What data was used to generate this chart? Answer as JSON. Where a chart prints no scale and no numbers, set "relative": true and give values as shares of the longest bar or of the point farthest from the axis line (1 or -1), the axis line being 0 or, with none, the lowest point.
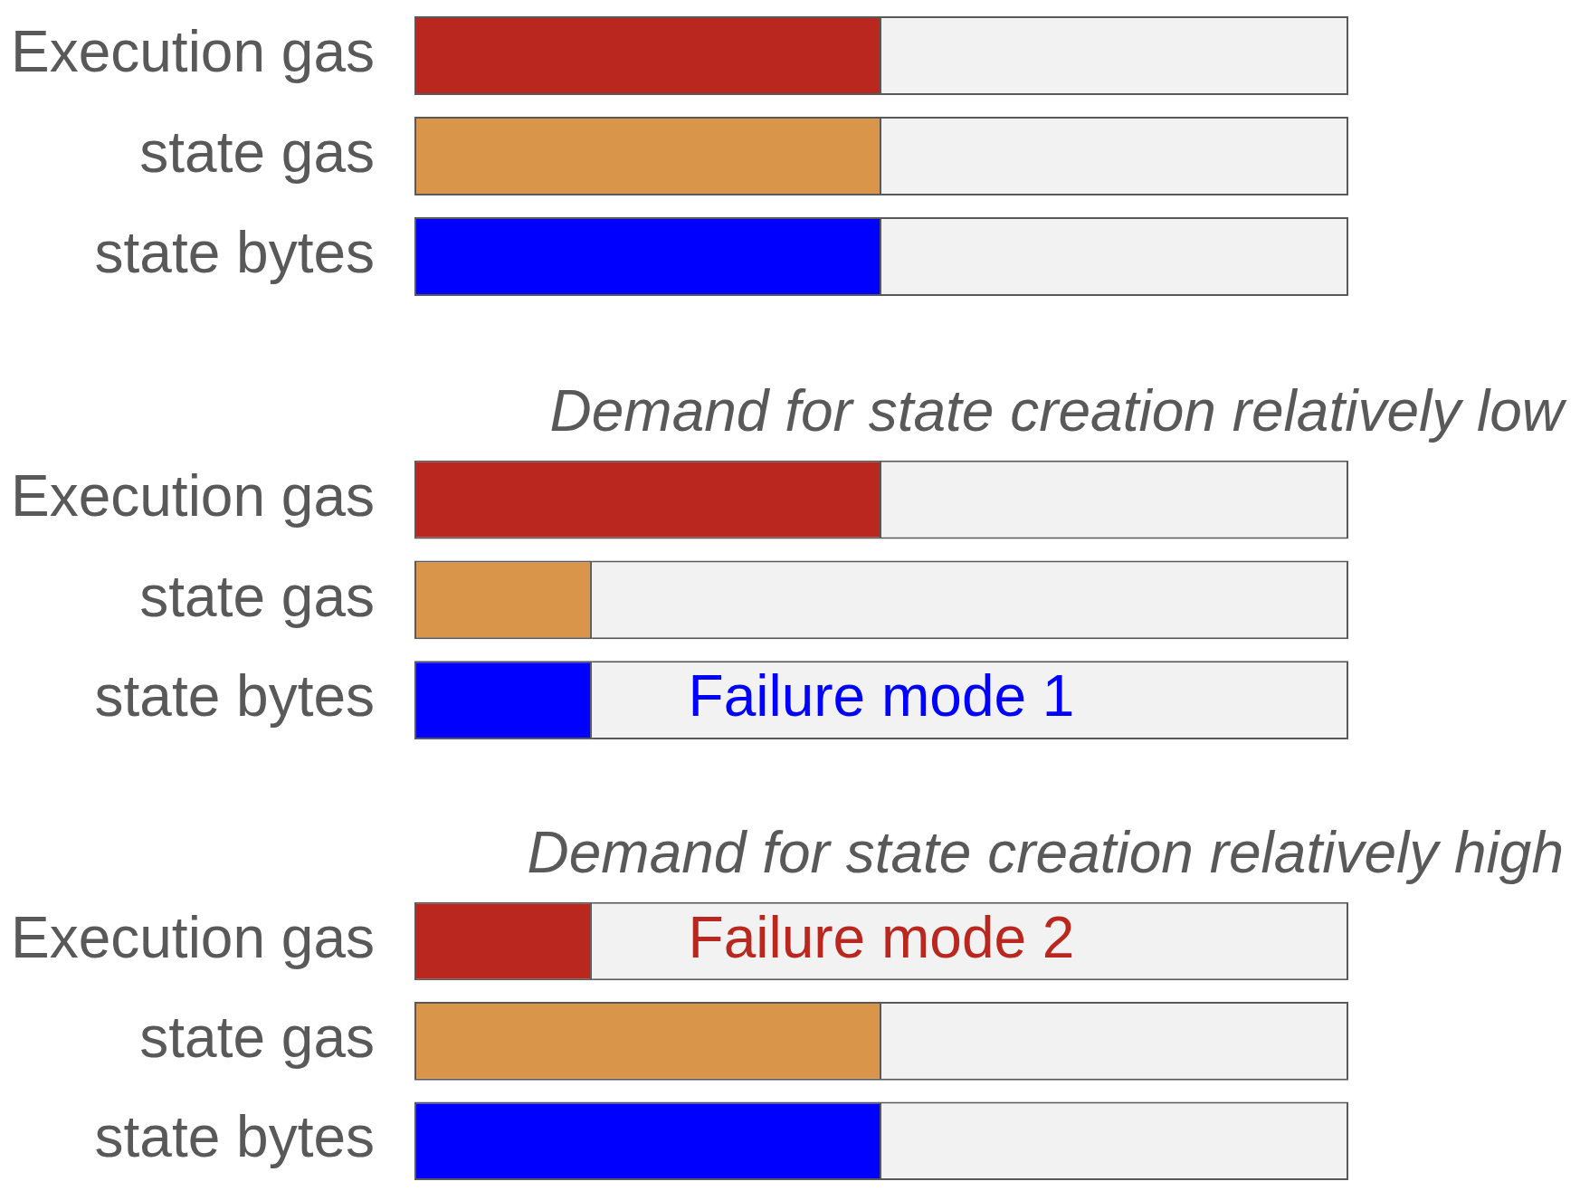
{
  "chart_data": [
    {
      "type": "bar",
      "orientation": "horizontal",
      "stacked": true,
      "relative": true,
      "categories": [
        "Execution gas",
        "state gas",
        "state bytes"
      ],
      "series": [
        {
          "colors": [
            "#b9271e",
            "#d9964b",
            "#0000ff"
          ],
          "values": [
            0.5,
            0.5,
            0.5
          ]
        },
        {
          "color": "#f2f2f2",
          "values": [
            0.5,
            0.5,
            0.5
          ]
        }
      ]
    },
    {
      "type": "bar",
      "orientation": "horizontal",
      "stacked": true,
      "relative": true,
      "title": "Demand for state creation relatively low",
      "categories": [
        "Execution gas",
        "state gas",
        "state bytes"
      ],
      "series": [
        {
          "colors": [
            "#b9271e",
            "#d9964b",
            "#0000ff"
          ],
          "values": [
            0.5,
            0.19,
            0.19
          ]
        },
        {
          "color": "#f2f2f2",
          "values": [
            0.5,
            0.81,
            0.81
          ]
        }
      ],
      "annotations": [
        {
          "text": "Failure mode 1",
          "x": 0.5,
          "y": "state bytes"
        }
      ]
    },
    {
      "type": "bar",
      "orientation": "horizontal",
      "stacked": true,
      "relative": true,
      "title": "Demand for state creation relatively high",
      "categories": [
        "Execution gas",
        "state gas",
        "state bytes"
      ],
      "series": [
        {
          "colors": [
            "#b9271e",
            "#d9964b",
            "#0000ff"
          ],
          "values": [
            0.19,
            0.5,
            0.5
          ]
        },
        {
          "color": "#f2f2f2",
          "values": [
            0.81,
            0.5,
            0.5
          ]
        }
      ],
      "annotations": [
        {
          "text": "Failure mode 2",
          "x": 0.5,
          "y": "Execution gas"
        }
      ]
    }
  ]
}
